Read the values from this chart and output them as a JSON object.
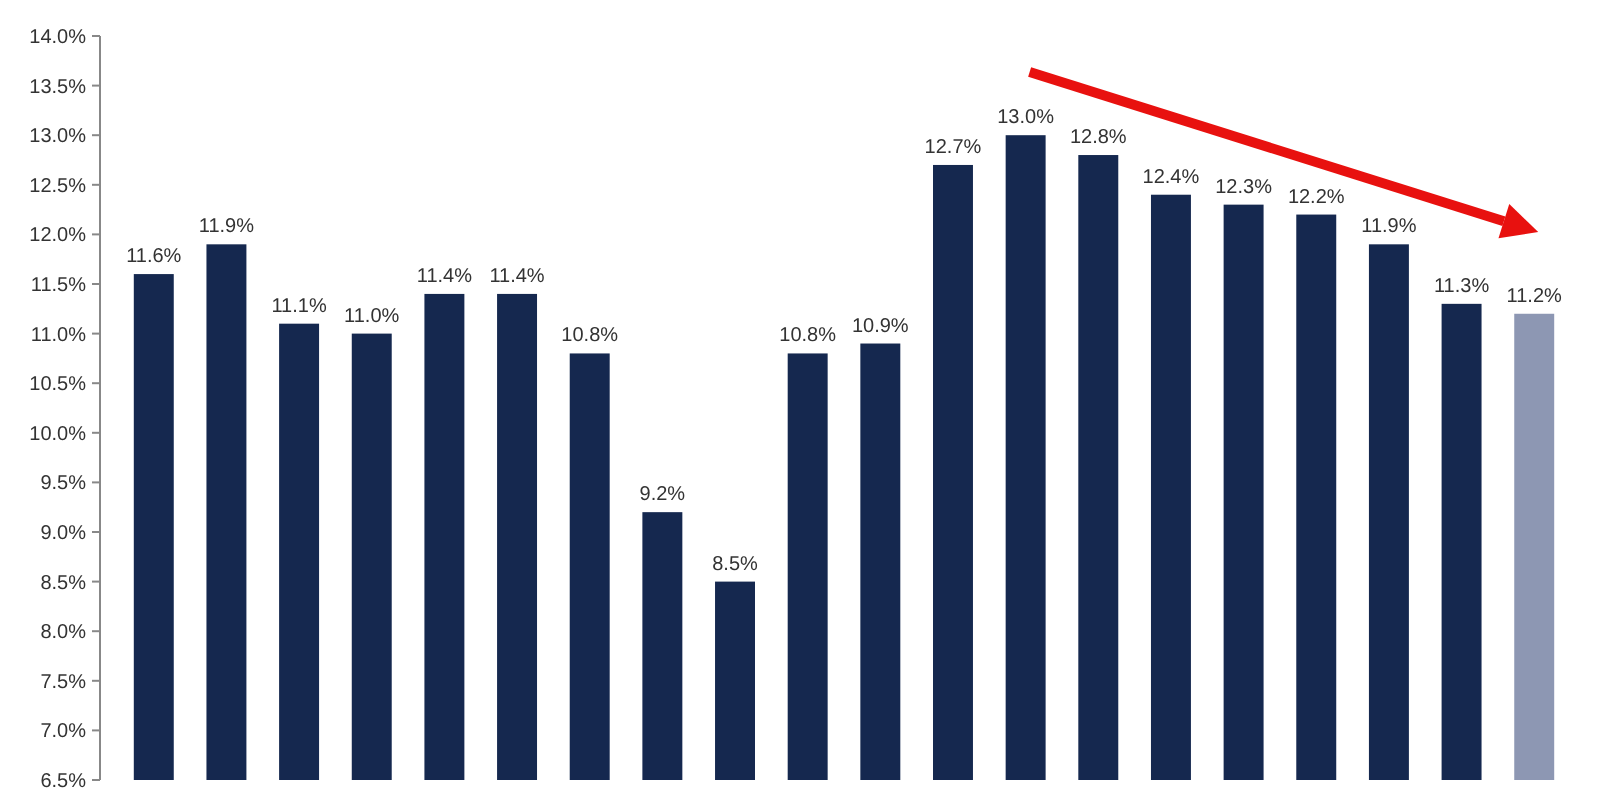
{
  "chart_data": {
    "type": "bar",
    "categories": [
      null,
      null,
      null,
      null,
      null,
      null,
      null,
      null,
      null,
      null,
      null,
      null,
      null,
      null,
      null,
      null,
      null,
      null,
      null,
      null
    ],
    "values": [
      11.6,
      11.9,
      11.1,
      11.0,
      11.4,
      11.4,
      10.8,
      9.2,
      8.5,
      10.8,
      10.9,
      12.7,
      13.0,
      12.8,
      12.4,
      12.3,
      12.2,
      11.9,
      11.3,
      11.2
    ],
    "colors": [
      "#15284f",
      "#15284f",
      "#15284f",
      "#15284f",
      "#15284f",
      "#15284f",
      "#15284f",
      "#15284f",
      "#15284f",
      "#15284f",
      "#15284f",
      "#15284f",
      "#15284f",
      "#15284f",
      "#15284f",
      "#15284f",
      "#15284f",
      "#15284f",
      "#15284f",
      "#8d97b3"
    ],
    "value_labels": [
      "11.6%",
      "11.9%",
      "11.1%",
      "11.0%",
      "11.4%",
      "11.4%",
      "10.8%",
      "9.2%",
      "8.5%",
      "10.8%",
      "10.9%",
      "12.7%",
      "13.0%",
      "12.8%",
      "12.4%",
      "12.3%",
      "12.2%",
      "11.9%",
      "11.3%",
      "11.2%"
    ],
    "ylim": [
      6.5,
      14.0
    ],
    "yticks": [
      {
        "value": 6.5,
        "label": "6.5%"
      },
      {
        "value": 7,
        "label": "7.0%"
      },
      {
        "value": 7.5,
        "label": "7.5%"
      },
      {
        "value": 8,
        "label": "8.0%"
      },
      {
        "value": 8.5,
        "label": "8.5%"
      },
      {
        "value": 9,
        "label": "9.0%"
      },
      {
        "value": 9.5,
        "label": "9.5%"
      },
      {
        "value": 10,
        "label": "10.0%"
      },
      {
        "value": 10.5,
        "label": "10.5%"
      },
      {
        "value": 11,
        "label": "11.0%"
      },
      {
        "value": 11.5,
        "label": "11.5%"
      },
      {
        "value": 12,
        "label": "12.0%"
      },
      {
        "value": 12.5,
        "label": "12.5%"
      },
      {
        "value": 13,
        "label": "13.0%"
      },
      {
        "value": 13.5,
        "label": "13.5%"
      },
      {
        "value": 14,
        "label": "14.0%"
      }
    ],
    "grid": false,
    "tick_labels": "y"
  }
}
